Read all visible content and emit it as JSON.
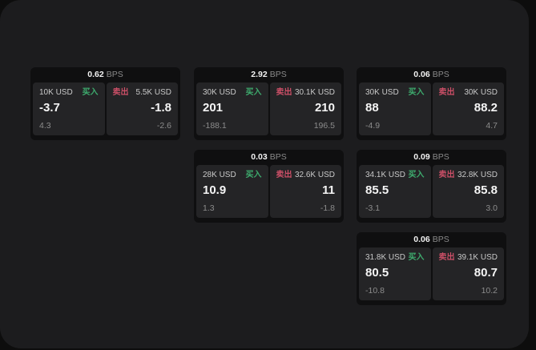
{
  "labels": {
    "bps": "BPS",
    "buy": "买入",
    "sell": "卖出"
  },
  "colors": {
    "buy": "#3eac6e",
    "sell": "#cb4f67",
    "panel": "#1c1c1e",
    "card": "#0f0f10",
    "tile": "#242426"
  },
  "cards": [
    {
      "bps": "0.62",
      "buy": {
        "amount": "10K USD",
        "value": "-3.7",
        "delta": "4.3"
      },
      "sell": {
        "amount": "5.5K USD",
        "value": "-1.8",
        "delta": "-2.6"
      }
    },
    {
      "bps": "2.92",
      "buy": {
        "amount": "30K USD",
        "value": "201",
        "delta": "-188.1"
      },
      "sell": {
        "amount": "30.1K USD",
        "value": "210",
        "delta": "196.5"
      }
    },
    {
      "bps": "0.06",
      "buy": {
        "amount": "30K USD",
        "value": "88",
        "delta": "-4.9"
      },
      "sell": {
        "amount": "30K USD",
        "value": "88.2",
        "delta": "4.7"
      }
    },
    {
      "bps": "0.03",
      "buy": {
        "amount": "28K USD",
        "value": "10.9",
        "delta": "1.3"
      },
      "sell": {
        "amount": "32.6K USD",
        "value": "11",
        "delta": "-1.8"
      }
    },
    {
      "bps": "0.09",
      "buy": {
        "amount": "34.1K USD",
        "value": "85.5",
        "delta": "-3.1"
      },
      "sell": {
        "amount": "32.8K USD",
        "value": "85.8",
        "delta": "3.0"
      }
    },
    {
      "bps": "0.06",
      "buy": {
        "amount": "31.8K USD",
        "value": "80.5",
        "delta": "-10.8"
      },
      "sell": {
        "amount": "39.1K USD",
        "value": "80.7",
        "delta": "10.2"
      }
    }
  ]
}
